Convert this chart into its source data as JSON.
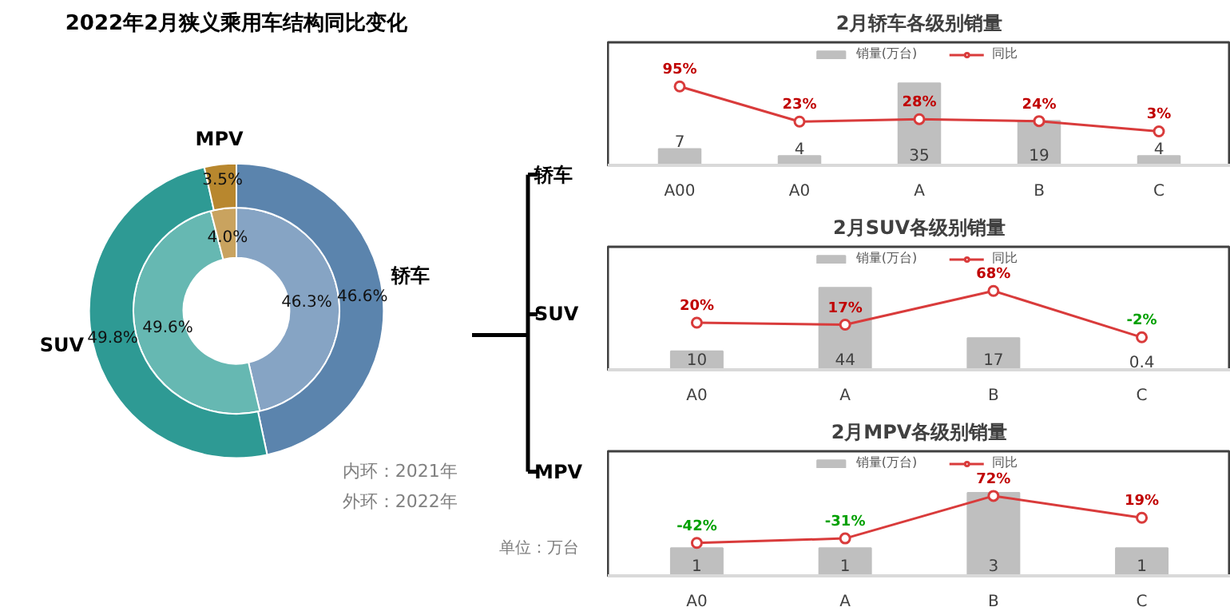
{
  "chart_data": [
    {
      "type": "donut",
      "title": "2022年2月狭义乘用车结构同比变化",
      "categories": [
        "轿车",
        "SUV",
        "MPV"
      ],
      "series": [
        {
          "values": [
            46.3,
            49.6,
            4.0
          ],
          "colors": [
            "#86a4c4",
            "#66b8b2",
            "#c9a35f"
          ],
          "value_labels": [
            "46.3%",
            "49.6%",
            "4.0%"
          ]
        },
        {
          "values": [
            46.6,
            49.8,
            3.5
          ],
          "colors": [
            "#5b84ad",
            "#2e9a94",
            "#b8872e"
          ],
          "value_labels": [
            "46.6%",
            "49.8%",
            "3.5%"
          ]
        }
      ],
      "annotations": [
        "内环：2021年",
        "外环：2022年"
      ]
    },
    {
      "type": "other",
      "annotations": [
        "轿车",
        "SUV",
        "MPV",
        "单位：万台"
      ]
    },
    {
      "type": "bar",
      "title": "2月轿车各级别销量",
      "categories": [
        "A00",
        "A0",
        "A",
        "B",
        "C"
      ],
      "legend": "top",
      "tick_labels": "x",
      "data_labels": true,
      "series": [
        {
          "name": "销量(万台)",
          "type": "bar",
          "color": "#bfbfbf",
          "values": [
            7,
            4,
            35,
            19,
            4
          ]
        },
        {
          "name": "同比",
          "type": "line",
          "axis": "y2",
          "color": "#d93b3b",
          "marker": "circle",
          "values": [
            95,
            23,
            28,
            24,
            3
          ],
          "value_labels": [
            "95%",
            "23%",
            "28%",
            "24%",
            "3%"
          ]
        }
      ]
    },
    {
      "type": "bar",
      "title": "2月SUV各级别销量",
      "categories": [
        "A0",
        "A",
        "B",
        "C"
      ],
      "legend": "top",
      "tick_labels": "x",
      "data_labels": true,
      "series": [
        {
          "name": "销量(万台)",
          "type": "bar",
          "color": "#bfbfbf",
          "values": [
            10,
            44,
            17,
            0.4
          ]
        },
        {
          "name": "同比",
          "type": "line",
          "axis": "y2",
          "color": "#d93b3b",
          "marker": "circle",
          "values": [
            20,
            17,
            68,
            -2
          ],
          "value_labels": [
            "20%",
            "17%",
            "68%",
            "-2%"
          ]
        }
      ]
    },
    {
      "type": "bar",
      "title": "2月MPV各级别销量",
      "categories": [
        "A0",
        "A",
        "B",
        "C"
      ],
      "legend": "top",
      "tick_labels": "x",
      "data_labels": true,
      "series": [
        {
          "name": "销量(万台)",
          "type": "bar",
          "color": "#bfbfbf",
          "values": [
            1,
            1,
            3,
            1
          ]
        },
        {
          "name": "同比",
          "type": "line",
          "axis": "y2",
          "color": "#d93b3b",
          "marker": "circle",
          "values": [
            -42,
            -31,
            72,
            19
          ],
          "value_labels": [
            "-42%",
            "-31%",
            "72%",
            "19%"
          ]
        }
      ]
    }
  ]
}
